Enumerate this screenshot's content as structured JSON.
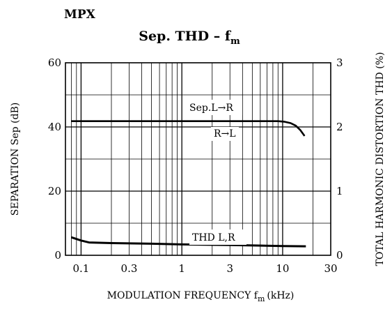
{
  "chart_data": {
    "type": "line",
    "header": "MPX",
    "title": {
      "main": "Sep. THD – f",
      "sub": "m"
    },
    "xlabel": {
      "main": "MODULATION FREQUENCY f",
      "sub": "m",
      "unit": "(kHz)"
    },
    "ylabel_left": "SEPARATION Sep (dB)",
    "ylabel_right": "TOTAL HARMONIC DISTORTION THD (%)",
    "x_scale": "log",
    "xlim": [
      0.07,
      30
    ],
    "x_ticks": [
      {
        "value": 0.1,
        "label": "0.1"
      },
      {
        "value": 0.3,
        "label": "0.3"
      },
      {
        "value": 1,
        "label": "1"
      },
      {
        "value": 3,
        "label": "3"
      },
      {
        "value": 10,
        "label": "10"
      },
      {
        "value": 30,
        "label": "30"
      }
    ],
    "ylim_left": [
      0,
      60
    ],
    "y_ticks_left": [
      {
        "value": 0,
        "label": "0"
      },
      {
        "value": 20,
        "label": "20"
      },
      {
        "value": 40,
        "label": "40"
      },
      {
        "value": 60,
        "label": "60"
      }
    ],
    "ylim_right": [
      0,
      3
    ],
    "y_ticks_right": [
      {
        "value": 0,
        "label": "0"
      },
      {
        "value": 1,
        "label": "1"
      },
      {
        "value": 2,
        "label": "2"
      },
      {
        "value": 3,
        "label": "3"
      }
    ],
    "grid": true,
    "series": [
      {
        "name": "Sep.L→R",
        "axis": "left",
        "x": [
          0.08,
          0.1,
          0.3,
          1,
          3,
          9,
          10.5,
          12,
          13.5,
          15,
          16.5
        ],
        "y": [
          41.8,
          41.8,
          41.8,
          41.8,
          41.8,
          41.8,
          41.6,
          41.2,
          40.4,
          39.0,
          37.2
        ]
      },
      {
        "name": "R→L",
        "axis": "left",
        "x": [
          0.08,
          0.1,
          0.3,
          1,
          3,
          9,
          10.5,
          12,
          13.5,
          15,
          16.5
        ],
        "y": [
          41.8,
          41.8,
          41.8,
          41.8,
          41.8,
          41.8,
          41.6,
          41.2,
          40.4,
          39.0,
          37.2
        ]
      },
      {
        "name": "THD L,R",
        "axis": "right",
        "x": [
          0.08,
          0.1,
          0.12,
          0.2,
          0.5,
          1,
          3,
          10,
          17
        ],
        "y": [
          0.28,
          0.23,
          0.2,
          0.19,
          0.18,
          0.17,
          0.16,
          0.145,
          0.14
        ]
      }
    ]
  }
}
